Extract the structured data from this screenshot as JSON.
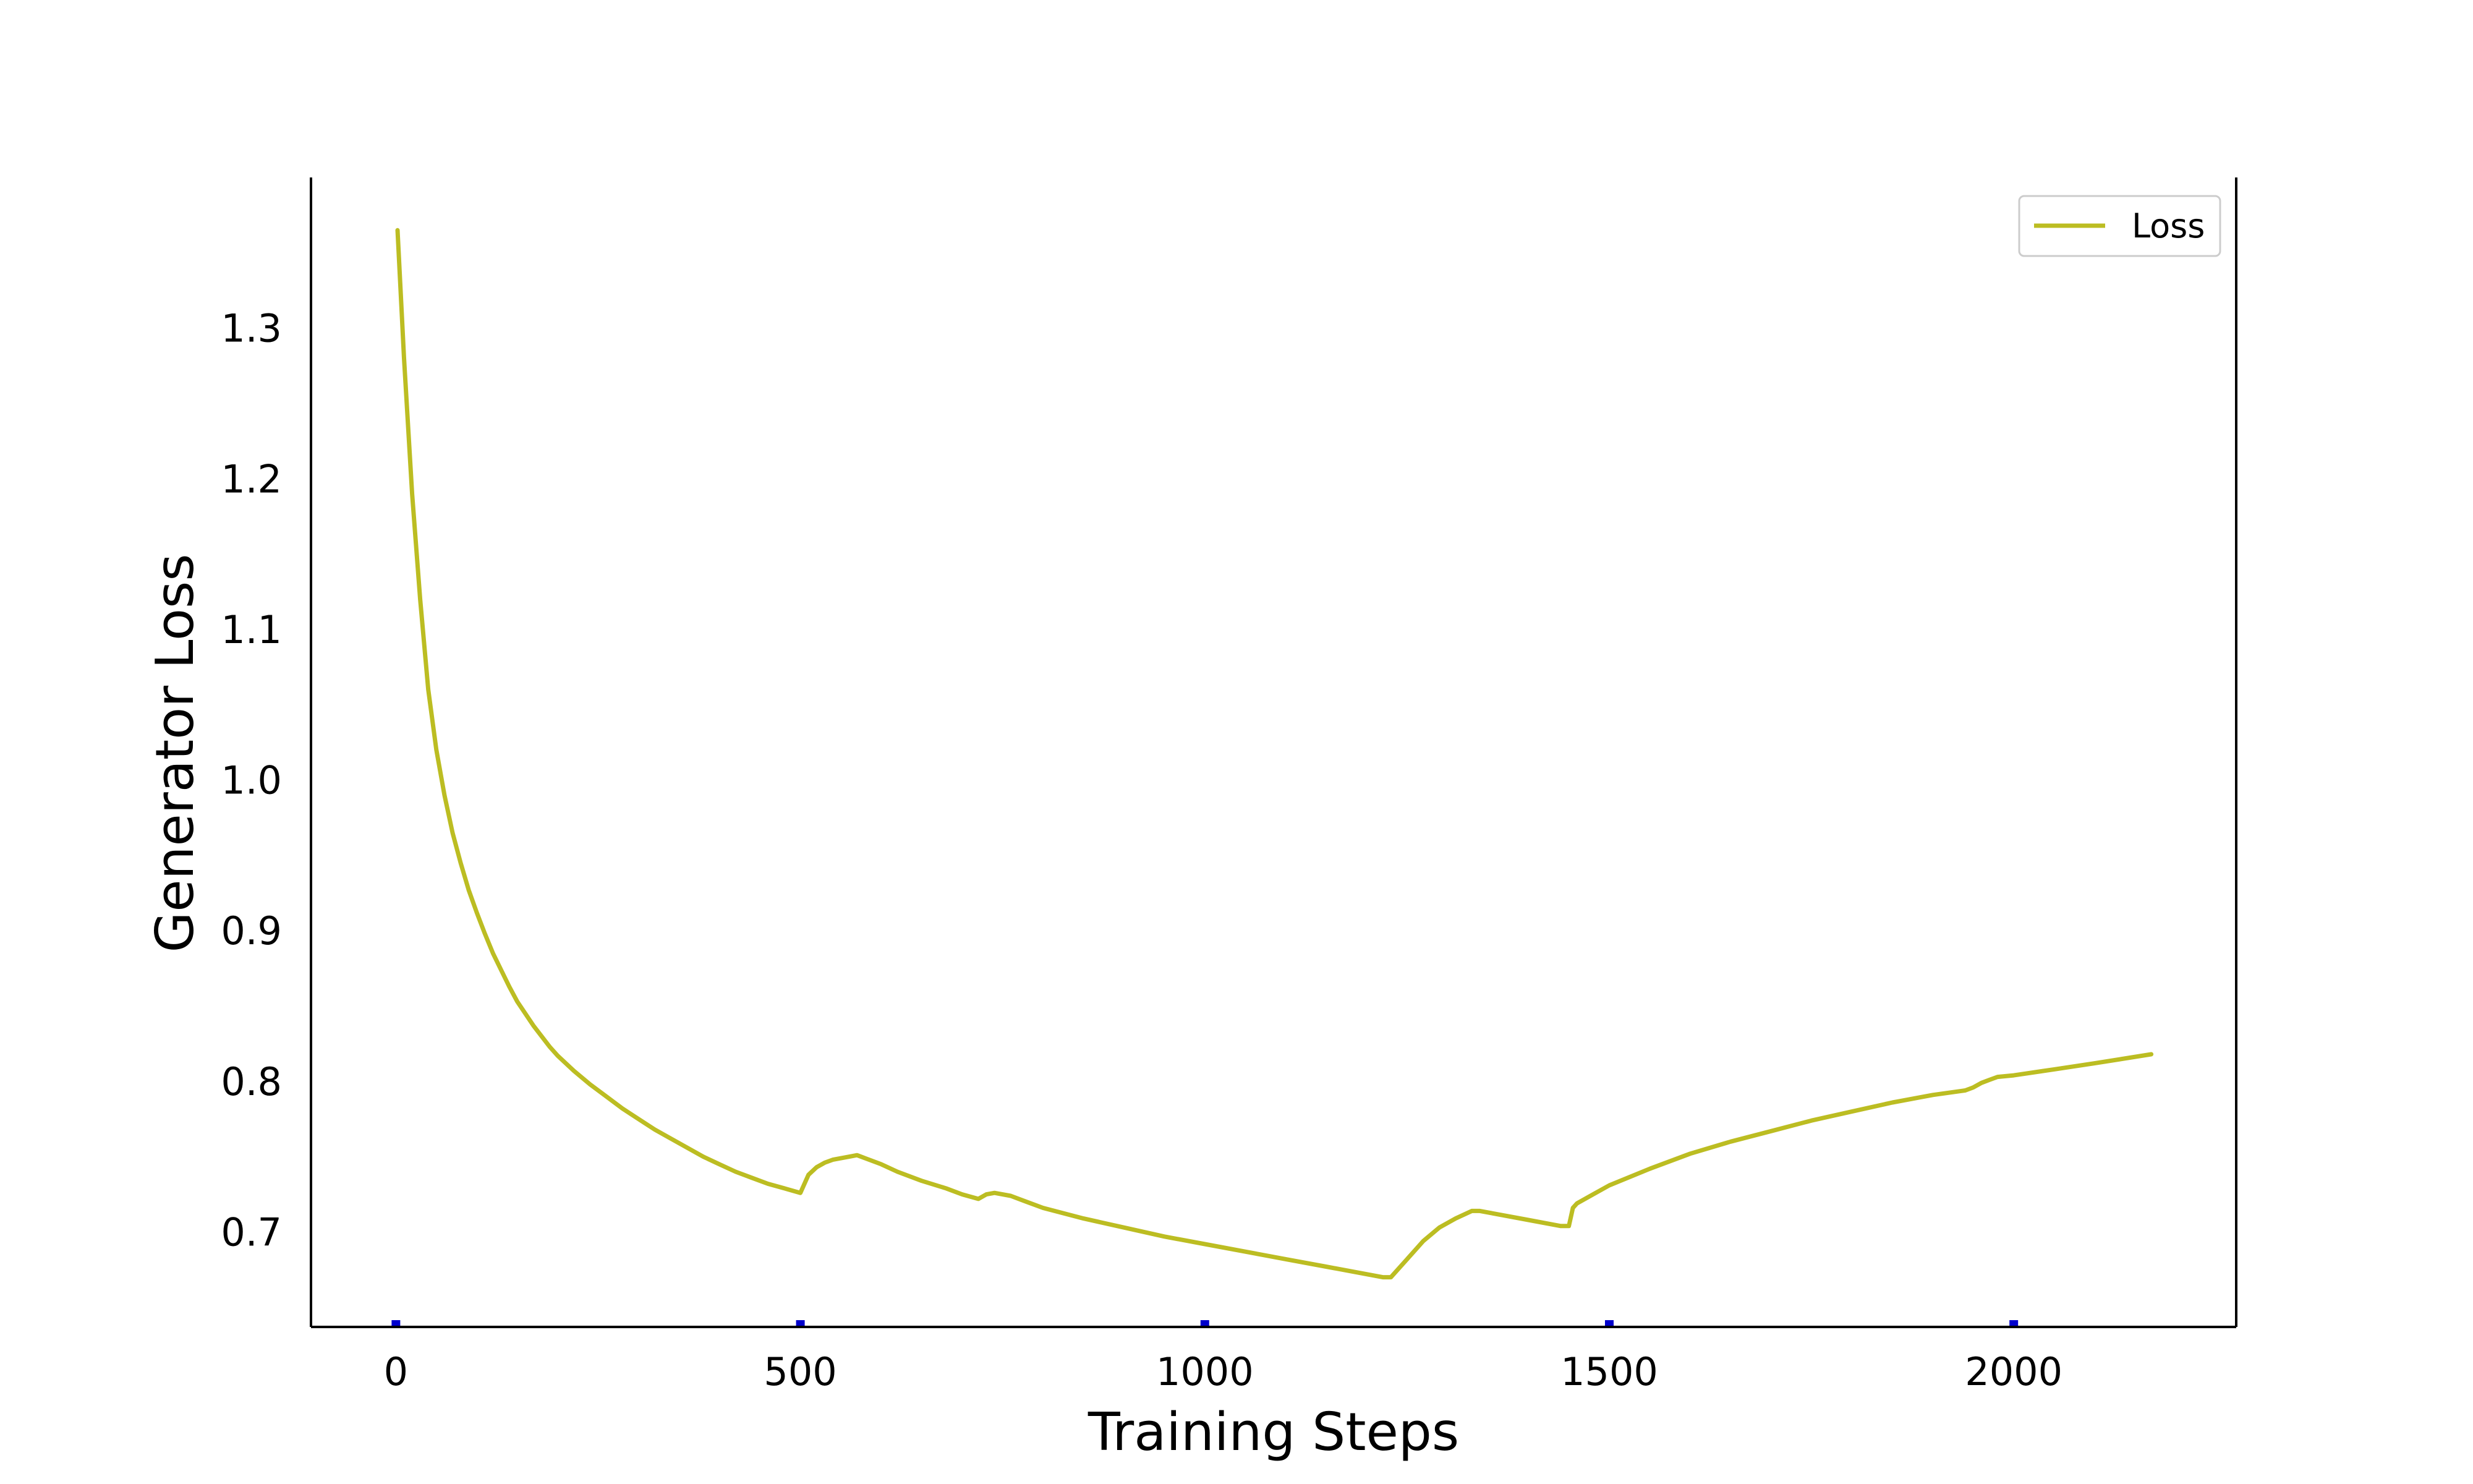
{
  "chart_data": {
    "type": "line",
    "title": "",
    "xlabel": "Training Steps",
    "ylabel": "Generator Loss",
    "xlim": [
      -105,
      2275
    ],
    "ylim": [
      0.637,
      1.4
    ],
    "xticks": [
      0,
      500,
      1000,
      1500,
      2000
    ],
    "xtick_labels": [
      "0",
      "500",
      "1000",
      "1500",
      "2000"
    ],
    "yticks": [
      0.7,
      0.8,
      0.9,
      1.0,
      1.1,
      1.2,
      1.3
    ],
    "ytick_labels": [
      "0.7",
      "0.8",
      "0.9",
      "1.0",
      "1.1",
      "1.2",
      "1.3"
    ],
    "grid": false,
    "legend_position": "top-right",
    "colors": {
      "series": "#bcbd22",
      "tick_marker": "#0000cc",
      "axis": "#000000"
    },
    "series": [
      {
        "name": "Loss",
        "x": [
          2,
          10,
          20,
          30,
          40,
          50,
          60,
          70,
          80,
          90,
          100,
          110,
          120,
          130,
          140,
          150,
          160,
          170,
          180,
          190,
          200,
          220,
          240,
          260,
          280,
          300,
          320,
          340,
          360,
          380,
          400,
          420,
          440,
          460,
          480,
          500,
          510,
          520,
          530,
          540,
          560,
          570,
          580,
          600,
          620,
          650,
          680,
          700,
          720,
          730,
          740,
          760,
          780,
          800,
          850,
          900,
          950,
          1000,
          1050,
          1100,
          1150,
          1200,
          1220,
          1230,
          1250,
          1270,
          1290,
          1310,
          1330,
          1340,
          1360,
          1400,
          1440,
          1450,
          1455,
          1460,
          1480,
          1500,
          1550,
          1600,
          1650,
          1700,
          1750,
          1800,
          1850,
          1900,
          1940,
          1950,
          1960,
          1970,
          1980,
          2000,
          2050,
          2100,
          2170
        ],
        "y": [
          1.365,
          1.28,
          1.19,
          1.12,
          1.06,
          1.02,
          0.99,
          0.965,
          0.945,
          0.927,
          0.912,
          0.898,
          0.885,
          0.874,
          0.863,
          0.853,
          0.845,
          0.837,
          0.83,
          0.823,
          0.817,
          0.807,
          0.798,
          0.79,
          0.782,
          0.775,
          0.768,
          0.762,
          0.756,
          0.75,
          0.745,
          0.74,
          0.736,
          0.732,
          0.729,
          0.726,
          0.738,
          0.743,
          0.746,
          0.748,
          0.75,
          0.751,
          0.749,
          0.745,
          0.74,
          0.734,
          0.729,
          0.725,
          0.722,
          0.725,
          0.726,
          0.724,
          0.72,
          0.716,
          0.709,
          0.703,
          0.697,
          0.692,
          0.687,
          0.682,
          0.677,
          0.672,
          0.67,
          0.67,
          0.682,
          0.694,
          0.703,
          0.709,
          0.714,
          0.714,
          0.712,
          0.708,
          0.704,
          0.704,
          0.716,
          0.719,
          0.725,
          0.731,
          0.742,
          0.752,
          0.76,
          0.767,
          0.774,
          0.78,
          0.786,
          0.791,
          0.794,
          0.796,
          0.799,
          0.801,
          0.803,
          0.804,
          0.808,
          0.812,
          0.818
        ]
      }
    ]
  }
}
